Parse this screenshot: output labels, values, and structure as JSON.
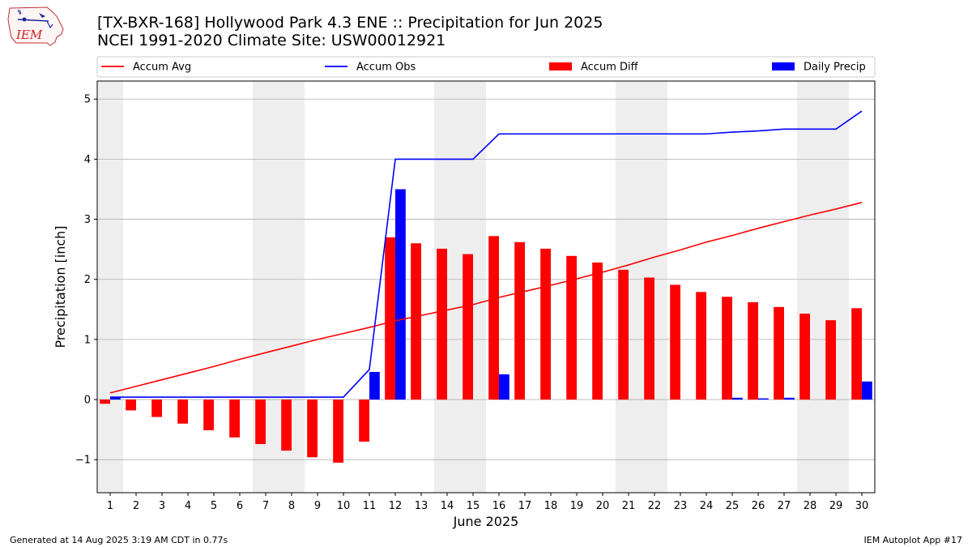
{
  "header": {
    "title": "[TX-BXR-168] Hollywood Park 4.3 ENE :: Precipitation for Jun 2025",
    "subtitle": "NCEI 1991-2020 Climate Site: USW00012921",
    "logo_text": "IEM"
  },
  "footer": {
    "left": "Generated at 14 Aug 2025 3:19 AM CDT in 0.77s",
    "right": "IEM Autoplot App #17"
  },
  "colors": {
    "accum_avg": "#ff0000",
    "accum_obs": "#0000ff",
    "accum_diff": "#ff0000",
    "daily_precip": "#0000ff",
    "weekend_shade": "#eeeeee",
    "grid": "#b0b0b0"
  },
  "chart_data": {
    "type": "bar",
    "xlabel": "June 2025",
    "ylabel": "Precipitation [inch]",
    "ylim": [
      -1.55,
      5.3
    ],
    "xlim": [
      0.5,
      30.5
    ],
    "yticks": [
      -1,
      0,
      1,
      2,
      3,
      4,
      5
    ],
    "ytick_labels": [
      "−1",
      "0",
      "1",
      "2",
      "3",
      "4",
      "5"
    ],
    "categories": [
      "1",
      "2",
      "3",
      "4",
      "5",
      "6",
      "7",
      "8",
      "9",
      "10",
      "11",
      "12",
      "13",
      "14",
      "15",
      "16",
      "17",
      "18",
      "19",
      "20",
      "21",
      "22",
      "23",
      "24",
      "25",
      "26",
      "27",
      "28",
      "29",
      "30"
    ],
    "grid": "horizontal",
    "legend_position": "top",
    "shaded_days": [
      [
        0.5,
        1.5
      ],
      [
        6.5,
        8.5
      ],
      [
        13.5,
        15.5
      ],
      [
        20.5,
        22.5
      ],
      [
        27.5,
        29.5
      ]
    ],
    "series": [
      {
        "name": "Accum Avg",
        "kind": "line",
        "values": [
          0.11,
          0.22,
          0.33,
          0.44,
          0.55,
          0.67,
          0.78,
          0.89,
          1.0,
          1.1,
          1.2,
          1.31,
          1.4,
          1.49,
          1.58,
          1.7,
          1.8,
          1.9,
          2.01,
          2.12,
          2.24,
          2.37,
          2.49,
          2.62,
          2.73,
          2.85,
          2.96,
          3.07,
          3.17,
          3.28
        ]
      },
      {
        "name": "Accum Obs",
        "kind": "line",
        "values": [
          0.04,
          0.04,
          0.04,
          0.04,
          0.04,
          0.04,
          0.04,
          0.04,
          0.04,
          0.04,
          0.5,
          4.0,
          4.0,
          4.0,
          4.0,
          4.42,
          4.42,
          4.42,
          4.42,
          4.42,
          4.42,
          4.42,
          4.42,
          4.42,
          4.45,
          4.47,
          4.5,
          4.5,
          4.5,
          4.8
        ]
      },
      {
        "name": "Accum Diff",
        "kind": "bar",
        "values": [
          -0.07,
          -0.18,
          -0.29,
          -0.4,
          -0.51,
          -0.63,
          -0.74,
          -0.85,
          -0.96,
          -1.05,
          -0.7,
          2.7,
          2.6,
          2.51,
          2.42,
          2.72,
          2.62,
          2.51,
          2.39,
          2.28,
          2.16,
          2.03,
          1.91,
          1.79,
          1.71,
          1.62,
          1.54,
          1.43,
          1.32,
          1.52
        ]
      },
      {
        "name": "Daily Precip",
        "kind": "bar",
        "values": [
          0.04,
          0,
          0,
          0,
          0,
          0,
          0,
          0,
          0,
          0,
          0.46,
          3.5,
          0,
          0,
          0,
          0.42,
          0,
          0,
          0,
          0,
          0,
          0,
          0,
          0,
          0.03,
          0.02,
          0.03,
          0,
          0,
          0.3
        ]
      }
    ]
  }
}
